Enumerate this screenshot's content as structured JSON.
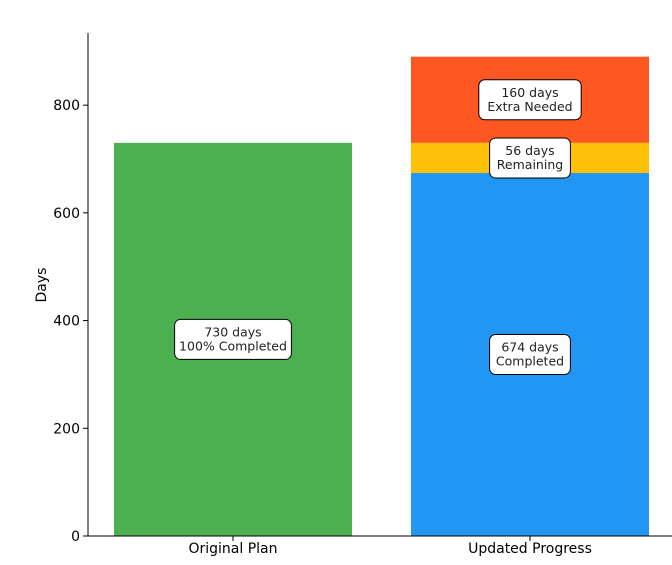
{
  "chart_data": {
    "type": "bar",
    "stacked": true,
    "ylabel": "Days",
    "ylim": [
      0,
      934
    ],
    "yticks": [
      0,
      200,
      400,
      600,
      800
    ],
    "grid": false,
    "categories": [
      "Original Plan",
      "Updated Progress"
    ],
    "segments": [
      {
        "category": "Original Plan",
        "value": 730,
        "color": "#4CAF50",
        "label_lines": [
          "730 days",
          "100% Completed"
        ]
      },
      {
        "category": "Updated Progress",
        "value": 674,
        "color": "#2196F3",
        "label_lines": [
          "674 days",
          "Completed"
        ]
      },
      {
        "category": "Updated Progress",
        "value": 56,
        "color": "#FFC107",
        "label_lines": [
          "56 days",
          "Remaining"
        ]
      },
      {
        "category": "Updated Progress",
        "value": 160,
        "color": "#FF5722",
        "label_lines": [
          "160 days",
          "Extra Needed"
        ]
      }
    ]
  }
}
